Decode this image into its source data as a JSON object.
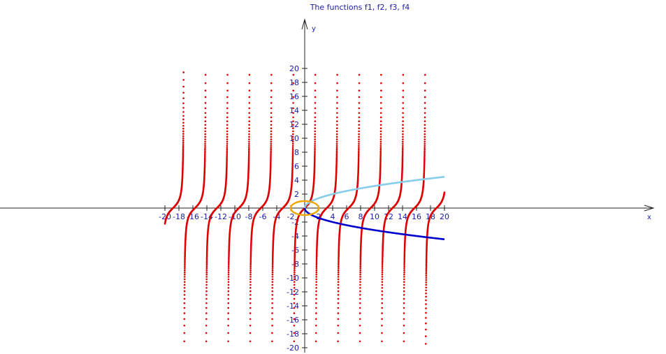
{
  "chart_data": {
    "type": "line",
    "title": "The functions f1, f2, f3, f4",
    "xlabel": "x",
    "ylabel": "y",
    "xlim": [
      -20,
      20
    ],
    "ylim": [
      -20,
      20
    ],
    "x_ticks": [
      -20,
      -18,
      -16,
      -14,
      -12,
      -10,
      -8,
      -6,
      -4,
      -2,
      0,
      2,
      4,
      6,
      8,
      10,
      12,
      14,
      16,
      18,
      20
    ],
    "y_ticks": [
      -20,
      -18,
      -16,
      -14,
      -12,
      -10,
      -8,
      -6,
      -4,
      -2,
      0,
      2,
      4,
      6,
      8,
      10,
      12,
      14,
      16,
      18,
      20
    ],
    "series": [
      {
        "color": "#dd0000",
        "style": "dotted",
        "samples": {
          "x": [
            -20,
            -19.5,
            -19,
            -18.5,
            -18,
            -17.5,
            -17.3,
            -17,
            -16.5,
            -16,
            -15.5,
            -15,
            -14.5,
            -14.2,
            -14,
            -13.5,
            -13,
            -12.5,
            -12,
            -11.5,
            -11.1,
            -11,
            -10.5,
            -10,
            -9.5,
            -9,
            -8.5,
            -8,
            -7.9,
            -7.5,
            -7,
            -6.5,
            -6,
            -5.5,
            -5,
            -4.8,
            -4.5,
            -4,
            -3.5,
            -3,
            -2.5,
            -2,
            -1.6,
            -1.5,
            -1,
            -0.5,
            0,
            0.5,
            1,
            1.5,
            2,
            2.5,
            3,
            3.5,
            4,
            4.5,
            5,
            5.5,
            6,
            6.5,
            7,
            7.5,
            8,
            8.5,
            9,
            9.5,
            10,
            10.5,
            11,
            11.5,
            12,
            12.5,
            13,
            13.5,
            14,
            14.5,
            15,
            15.5,
            16,
            16.5,
            17,
            17.5,
            18,
            18.5,
            19,
            19.5,
            20
          ],
          "y": [
            -2.24,
            -0.69,
            0.15,
            1.14,
            3.38,
            20,
            -20,
            -3.38,
            -1.14,
            -0.3,
            0.36,
            0.86,
            4.31,
            20,
            -20,
            -2.2,
            -0.46,
            0.11,
            0.64,
            1.5,
            20,
            -20,
            -1.5,
            -0.65,
            -0.13,
            0.45,
            1.57,
            6.8,
            -20,
            -2.71,
            -0.87,
            -0.22,
            0.29,
            0.71,
            3.38,
            20,
            -20,
            -1.16,
            -0.37,
            0.14,
            0.75,
            2.19,
            20,
            -14.1,
            -1.56,
            -0.55,
            0,
            0.55,
            1.56,
            14.1,
            -2.19,
            -0.75,
            -0.14,
            0.37,
            1.16,
            4.64,
            -3.38,
            -0.71,
            -0.29,
            0.22,
            0.87,
            2.71,
            -6.8,
            -1.57,
            -0.45,
            0.13,
            0.65,
            1.5,
            -20,
            -1.5,
            -0.64,
            -0.11,
            0.46,
            2.2,
            20,
            -4.31,
            -0.86,
            -0.36,
            0.3,
            1.14,
            3.38,
            -20,
            -1.14,
            -0.15,
            0.15,
            0.69,
            2.24
          ]
        }
      },
      {
        "color": "#87ceeb",
        "style": "solid",
        "samples": {
          "x": [
            0,
            1,
            2,
            4,
            6,
            8,
            10,
            12,
            14,
            16,
            18,
            20
          ],
          "y": [
            0,
            1,
            1.41,
            2,
            2.45,
            2.83,
            3.16,
            3.46,
            3.74,
            4,
            4.24,
            4.47
          ]
        }
      },
      {
        "color": "#0000cc",
        "style": "solid",
        "samples": {
          "x": [
            0,
            1,
            2,
            4,
            6,
            8,
            10,
            12,
            14,
            16,
            18,
            20
          ],
          "y": [
            0,
            -1,
            -1.41,
            -2,
            -2.45,
            -2.83,
            -3.16,
            -3.46,
            -3.74,
            -4,
            -4.24,
            -4.47
          ]
        }
      },
      {
        "color": "#f0a500",
        "style": "solid",
        "shape": "ellipse",
        "center": [
          0,
          0
        ],
        "radii": [
          2,
          1
        ]
      }
    ],
    "grid": false,
    "legend": "none"
  }
}
